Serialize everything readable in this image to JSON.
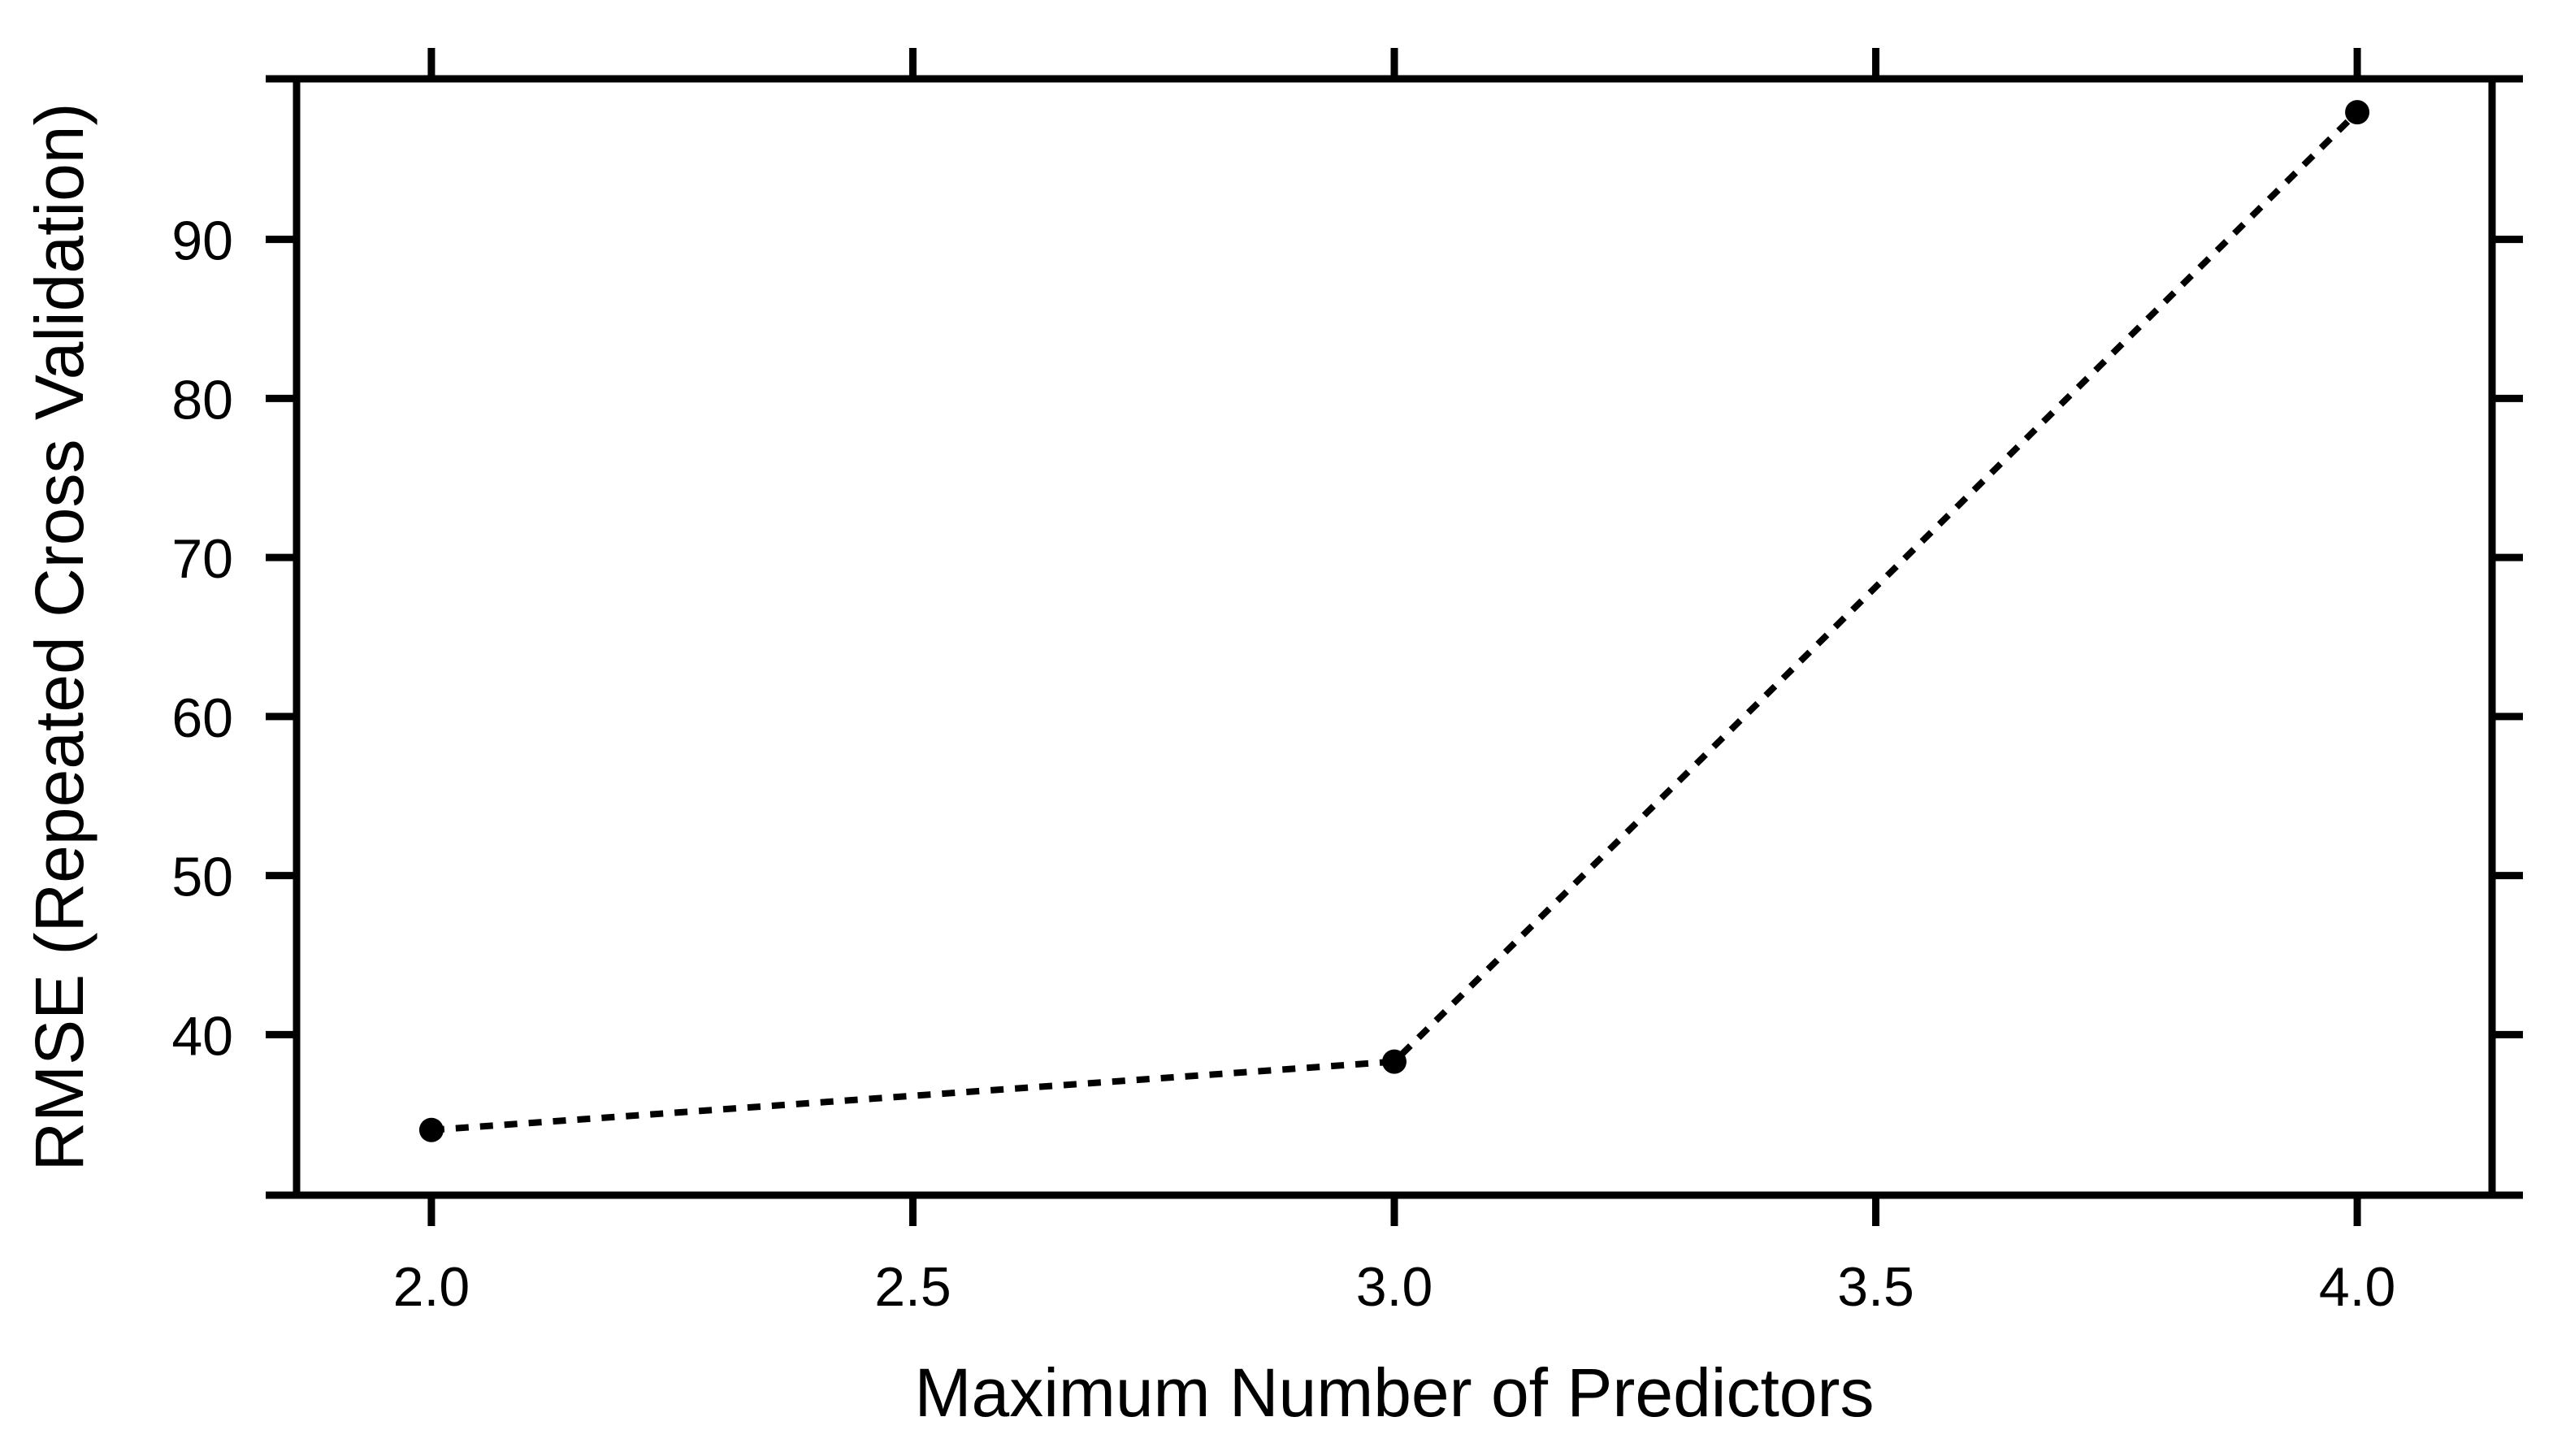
{
  "chart_data": {
    "type": "line",
    "title": "",
    "xlabel": "Maximum Number of Predictors",
    "ylabel": "RMSE (Repeated Cross Validation)",
    "x": [
      2.0,
      3.0,
      4.0
    ],
    "series": [
      {
        "name": "RMSE",
        "values": [
          34.0,
          38.3,
          98.0
        ]
      }
    ],
    "x_ticks": [
      2.0,
      2.5,
      3.0,
      3.5,
      4.0
    ],
    "x_tick_labels": [
      "2.0",
      "2.5",
      "3.0",
      "3.5",
      "4.0"
    ],
    "y_ticks": [
      40,
      50,
      60,
      70,
      80,
      90
    ],
    "y_tick_labels": [
      "40",
      "50",
      "60",
      "70",
      "80",
      "90"
    ],
    "xlim": [
      1.86,
      4.14
    ],
    "ylim": [
      29.9,
      100.1
    ],
    "grid": false,
    "legend": "none",
    "line_style": "dotted",
    "marker": "filled-circle",
    "fg_color": "#000000",
    "bg_color": "#ffffff"
  }
}
